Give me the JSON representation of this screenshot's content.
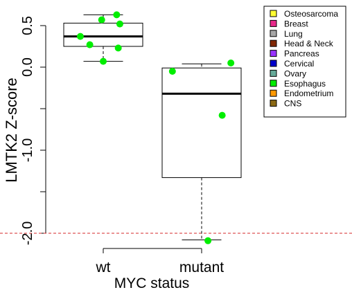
{
  "chart_data": {
    "type": "box",
    "title": "",
    "xlabel": "MYC status",
    "ylabel": "LMTK2 Z-score",
    "ylim": [
      -2.1,
      0.65
    ],
    "yticks": [
      {
        "value": 0.5,
        "label": "0.5"
      },
      {
        "value": 0.0,
        "label": "0.0"
      },
      {
        "value": -1.0,
        "label": "-1.0"
      },
      {
        "value": -2.0,
        "label": "-2.0"
      }
    ],
    "minor_yticks": [
      -0.5,
      -1.5
    ],
    "categories": [
      "wt",
      "mutant"
    ],
    "boxes": [
      {
        "category": "wt",
        "whisker_low": 0.07,
        "q1": 0.25,
        "median": 0.37,
        "q3": 0.53,
        "whisker_high": 0.63
      },
      {
        "category": "mutant",
        "whisker_low": -2.08,
        "q1": -1.33,
        "median": -0.32,
        "q3": -0.01,
        "whisker_high": 0.04
      }
    ],
    "points": [
      {
        "category": "wt",
        "offset": 0.17,
        "value": 0.63,
        "group": "Esophagus"
      },
      {
        "category": "wt",
        "offset": -0.02,
        "value": 0.57,
        "group": "Esophagus"
      },
      {
        "category": "wt",
        "offset": 0.21,
        "value": 0.52,
        "group": "Esophagus"
      },
      {
        "category": "wt",
        "offset": -0.29,
        "value": 0.37,
        "group": "Esophagus"
      },
      {
        "category": "wt",
        "offset": -0.17,
        "value": 0.27,
        "group": "Esophagus"
      },
      {
        "category": "wt",
        "offset": 0.19,
        "value": 0.23,
        "group": "Esophagus"
      },
      {
        "category": "wt",
        "offset": 0.0,
        "value": 0.07,
        "group": "Esophagus"
      },
      {
        "category": "mutant",
        "offset": 0.37,
        "value": 0.05,
        "group": "Esophagus"
      },
      {
        "category": "mutant",
        "offset": -0.37,
        "value": -0.05,
        "group": "Esophagus"
      },
      {
        "category": "mutant",
        "offset": 0.26,
        "value": -0.58,
        "group": "Esophagus"
      },
      {
        "category": "mutant",
        "offset": 0.08,
        "value": -2.09,
        "group": "Esophagus"
      }
    ],
    "reference_line": {
      "value": -2.0,
      "color": "#d62728",
      "style": "dashed"
    },
    "legend": {
      "position": "top-right",
      "entries": [
        {
          "label": "Osteosarcoma",
          "color": "#ffff33"
        },
        {
          "label": "Breast",
          "color": "#e7298a"
        },
        {
          "label": "Lung",
          "color": "#a6a6a6"
        },
        {
          "label": "Head & Neck",
          "color": "#7f2704"
        },
        {
          "label": "Pancreas",
          "color": "#9933ff"
        },
        {
          "label": "Cervical",
          "color": "#0000cc"
        },
        {
          "label": "Ovary",
          "color": "#66aa99"
        },
        {
          "label": "Esophagus",
          "color": "#00ee00"
        },
        {
          "label": "Endometrium",
          "color": "#ff9900"
        },
        {
          "label": "CNS",
          "color": "#8b6914"
        }
      ]
    },
    "point_color": "#00ee00"
  }
}
